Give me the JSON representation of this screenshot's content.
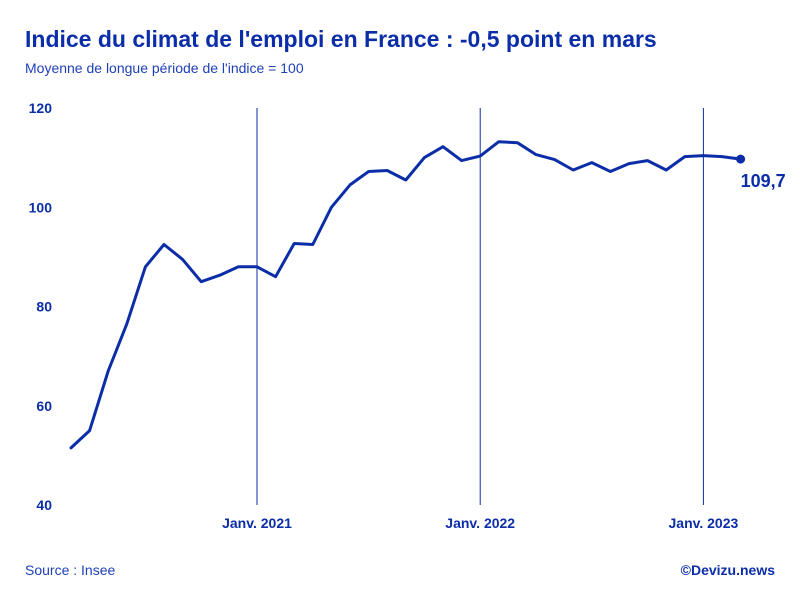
{
  "header": {
    "title": "Indice du climat de l'emploi en France : -0,5 point en mars",
    "subtitle": "Moyenne de longue période de l'indice = 100"
  },
  "footer": {
    "source": "Source : Insee",
    "brand": "©Devizu.news"
  },
  "colors": {
    "line": "#0b2ea8",
    "text": "#0b2ea8"
  },
  "chart_data": {
    "type": "line",
    "title": "Indice du climat de l'emploi en France : -0,5 point en mars",
    "subtitle": "Moyenne de longue période de l'indice = 100",
    "xlabel": "",
    "ylabel": "",
    "ylim": [
      40,
      120
    ],
    "yticks": [
      40,
      60,
      80,
      100,
      120
    ],
    "x_tick_labels": [
      {
        "label": "Janv. 2021",
        "x": "2021-01"
      },
      {
        "label": "Janv. 2022",
        "x": "2022-01"
      },
      {
        "label": "Janv. 2023",
        "x": "2023-01"
      }
    ],
    "vertical_lines_at": [
      "2021-01",
      "2022-01",
      "2023-01"
    ],
    "grid": false,
    "end_label": "109,7",
    "series": [
      {
        "x": [
          "2020-03",
          "2020-04",
          "2020-05",
          "2020-06",
          "2020-07",
          "2020-08",
          "2020-09",
          "2020-10",
          "2020-11",
          "2020-12",
          "2021-01",
          "2021-02",
          "2021-03",
          "2021-04",
          "2021-05",
          "2021-06",
          "2021-07",
          "2021-08",
          "2021-09",
          "2021-10",
          "2021-11",
          "2021-12",
          "2022-01",
          "2022-02",
          "2022-03",
          "2022-04",
          "2022-05",
          "2022-06",
          "2022-07",
          "2022-08",
          "2022-09",
          "2022-10",
          "2022-11",
          "2022-12",
          "2023-01",
          "2023-02",
          "2023-03"
        ],
        "values": [
          51.5,
          55,
          67,
          76.5,
          88,
          92.5,
          89.5,
          85,
          86.3,
          88,
          88,
          86,
          92.7,
          92.5,
          100,
          104.5,
          107.2,
          107.4,
          105.5,
          110,
          112.2,
          109.4,
          110.3,
          113.2,
          113,
          110.6,
          109.6,
          107.5,
          109,
          107.2,
          108.8,
          109.4,
          107.5,
          110.2,
          110.4,
          110.2,
          109.7
        ]
      }
    ]
  }
}
